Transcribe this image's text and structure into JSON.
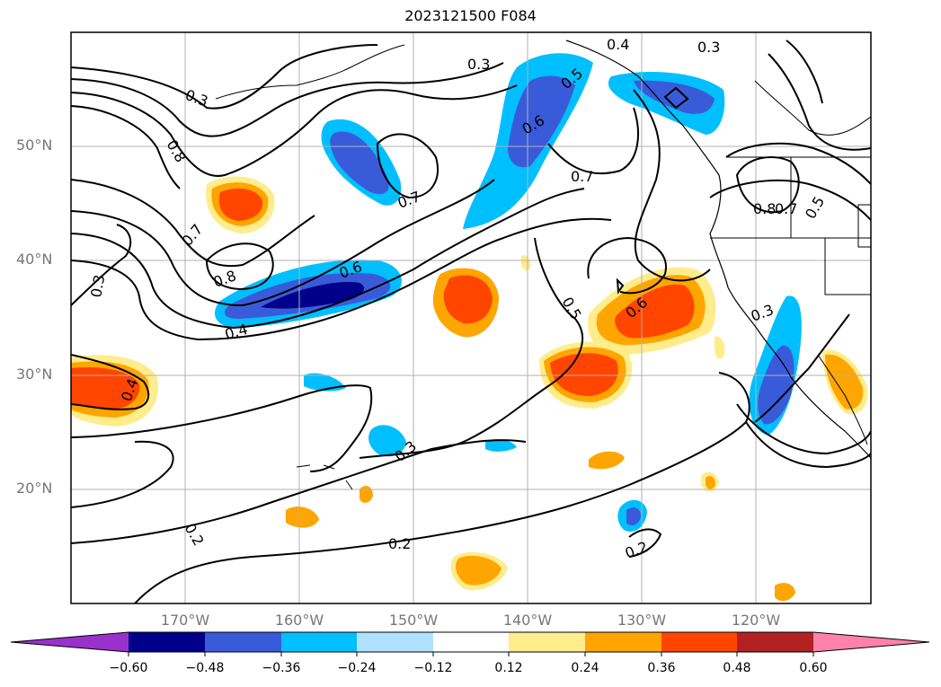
{
  "title": "2023121500 F084",
  "lat_labels": [
    "50°N",
    "40°N",
    "30°N",
    "20°N"
  ],
  "lon_labels": [
    "170°W",
    "160°W",
    "150°W",
    "140°W",
    "130°W",
    "120°W"
  ],
  "contour_labels": [
    "0.3",
    "0.4",
    "0.3",
    "0.3",
    "0.8",
    "0.5",
    "0.6",
    "0.7",
    "0.7",
    "0.8",
    "0.7",
    "0.5",
    "0.7",
    "0.8",
    "0.6",
    "0.3",
    "0.4",
    "0.4",
    "0.3",
    "0.5",
    "0.6",
    "0.3",
    "0.2",
    "0.2",
    "0.2"
  ],
  "colorbar": {
    "ticks": [
      "−0.60",
      "−0.48",
      "−0.36",
      "−0.24",
      "−0.12",
      "0.12",
      "0.24",
      "0.36",
      "0.48",
      "0.60"
    ],
    "colors": [
      "#9932cc",
      "#00008b",
      "#3a5bd9",
      "#00bfff",
      "#b0e2ff",
      "#ffffff",
      "#ffec8b",
      "#ffa500",
      "#ff4500",
      "#b22222",
      "#ff82ab"
    ]
  }
}
